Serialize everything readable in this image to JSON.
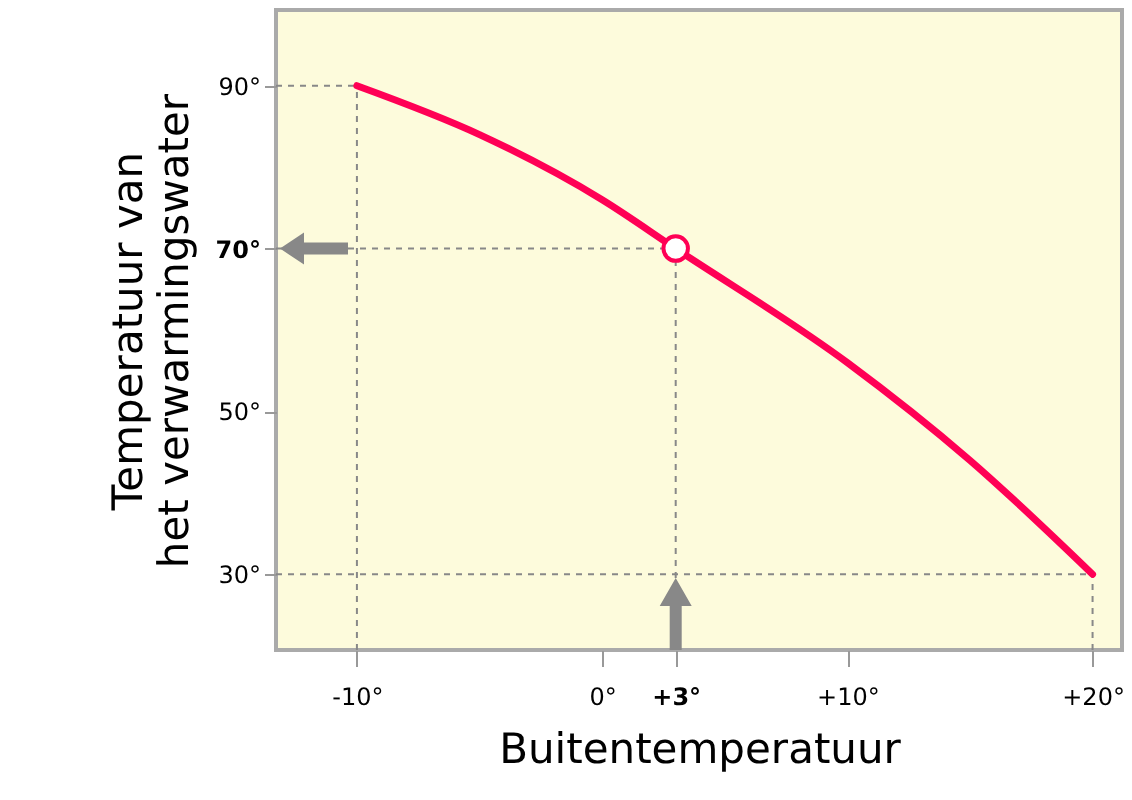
{
  "chart_data": {
    "type": "line",
    "xlabel": "Buitentemperatuur",
    "ylabel": "Temperatuur van\nhet verwarmingswater",
    "xlim": [
      -13.3,
      21.2
    ],
    "ylim": [
      20.7,
      99.3
    ],
    "xticks": [
      {
        "value": -10,
        "label": "-10°"
      },
      {
        "value": 0,
        "label": "0°"
      },
      {
        "value": 3,
        "label": "+3°"
      },
      {
        "value": 10,
        "label": "+10°"
      },
      {
        "value": 20,
        "label": "+20°"
      }
    ],
    "yticks": [
      {
        "value": 30,
        "label": "30°"
      },
      {
        "value": 50,
        "label": "50°"
      },
      {
        "value": 70,
        "label": "70°"
      },
      {
        "value": 90,
        "label": "90°"
      }
    ],
    "series": [
      {
        "color": "#ff0055",
        "x": [
          -10,
          -5,
          0,
          3,
          10,
          15,
          20
        ],
        "values": [
          90,
          84,
          76,
          70,
          56,
          44,
          30
        ]
      },
      {
        "type": "scatter",
        "color": "#ff0055",
        "x": [
          3
        ],
        "values": [
          70
        ]
      }
    ],
    "ref_lines": [
      {
        "axis": "y",
        "value": 90,
        "color": "#888888",
        "line_style": "dashed"
      },
      {
        "axis": "y",
        "value": 70,
        "color": "#888888",
        "line_style": "dashed"
      },
      {
        "axis": "y",
        "value": 30,
        "color": "#888888",
        "line_style": "dashed"
      },
      {
        "axis": "x",
        "value": -10,
        "color": "#888888",
        "line_style": "dashed"
      },
      {
        "axis": "x",
        "value": 3,
        "color": "#888888",
        "line_style": "dashed"
      },
      {
        "axis": "x",
        "value": 20,
        "color": "#888888",
        "line_style": "dashed"
      }
    ]
  }
}
